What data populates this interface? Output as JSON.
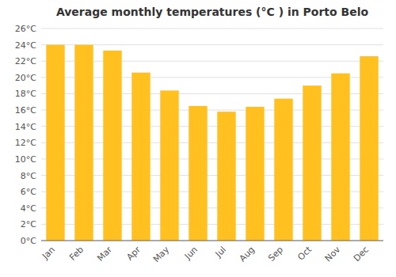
{
  "chart_data": {
    "type": "bar",
    "title": "Average monthly temperatures (°C ) in Porto Belo",
    "categories": [
      "Jan",
      "Feb",
      "Mar",
      "Apr",
      "May",
      "Jun",
      "Jul",
      "Aug",
      "Sep",
      "Oct",
      "Nov",
      "Dec"
    ],
    "values": [
      24.0,
      24.0,
      23.3,
      20.6,
      18.4,
      16.5,
      15.8,
      16.4,
      17.4,
      19.0,
      20.5,
      22.6
    ],
    "color": "#FFC020",
    "ylim": [
      0,
      26
    ],
    "yticks": [
      {
        "value": 0,
        "label": "0°C"
      },
      {
        "value": 2,
        "label": "2°C"
      },
      {
        "value": 4,
        "label": "4°C"
      },
      {
        "value": 6,
        "label": "6°C"
      },
      {
        "value": 8,
        "label": "8°C"
      },
      {
        "value": 10,
        "label": "10°C"
      },
      {
        "value": 12,
        "label": "12°C"
      },
      {
        "value": 14,
        "label": "14°C"
      },
      {
        "value": 16,
        "label": "16°C"
      },
      {
        "value": 18,
        "label": "18°C"
      },
      {
        "value": 20,
        "label": "20°C"
      },
      {
        "value": 22,
        "label": "22°C"
      },
      {
        "value": 24,
        "label": "24°C"
      },
      {
        "value": 26,
        "label": "26°C"
      }
    ],
    "grid": true
  }
}
